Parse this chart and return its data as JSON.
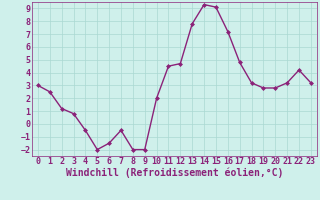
{
  "x": [
    0,
    1,
    2,
    3,
    4,
    5,
    6,
    7,
    8,
    9,
    10,
    11,
    12,
    13,
    14,
    15,
    16,
    17,
    18,
    19,
    20,
    21,
    22,
    23
  ],
  "y": [
    3.0,
    2.5,
    1.2,
    0.8,
    -0.5,
    -2.0,
    -1.5,
    -0.5,
    -2.0,
    -2.0,
    2.0,
    4.5,
    4.7,
    7.8,
    9.3,
    9.1,
    7.2,
    4.8,
    3.2,
    2.8,
    2.8,
    3.2,
    4.2,
    3.2
  ],
  "line_color": "#8B2279",
  "marker": "D",
  "marker_size": 2.0,
  "bg_color": "#cff0eb",
  "grid_color": "#aad8d2",
  "xlabel": "Windchill (Refroidissement éolien,°C)",
  "xlim": [
    -0.5,
    23.5
  ],
  "ylim": [
    -2.5,
    9.5
  ],
  "yticks": [
    -2,
    -1,
    0,
    1,
    2,
    3,
    4,
    5,
    6,
    7,
    8,
    9
  ],
  "xticks": [
    0,
    1,
    2,
    3,
    4,
    5,
    6,
    7,
    8,
    9,
    10,
    11,
    12,
    13,
    14,
    15,
    16,
    17,
    18,
    19,
    20,
    21,
    22,
    23
  ],
  "tick_color": "#8B2279",
  "xlabel_fontsize": 7.0,
  "tick_fontsize": 6.0,
  "line_width": 1.0
}
